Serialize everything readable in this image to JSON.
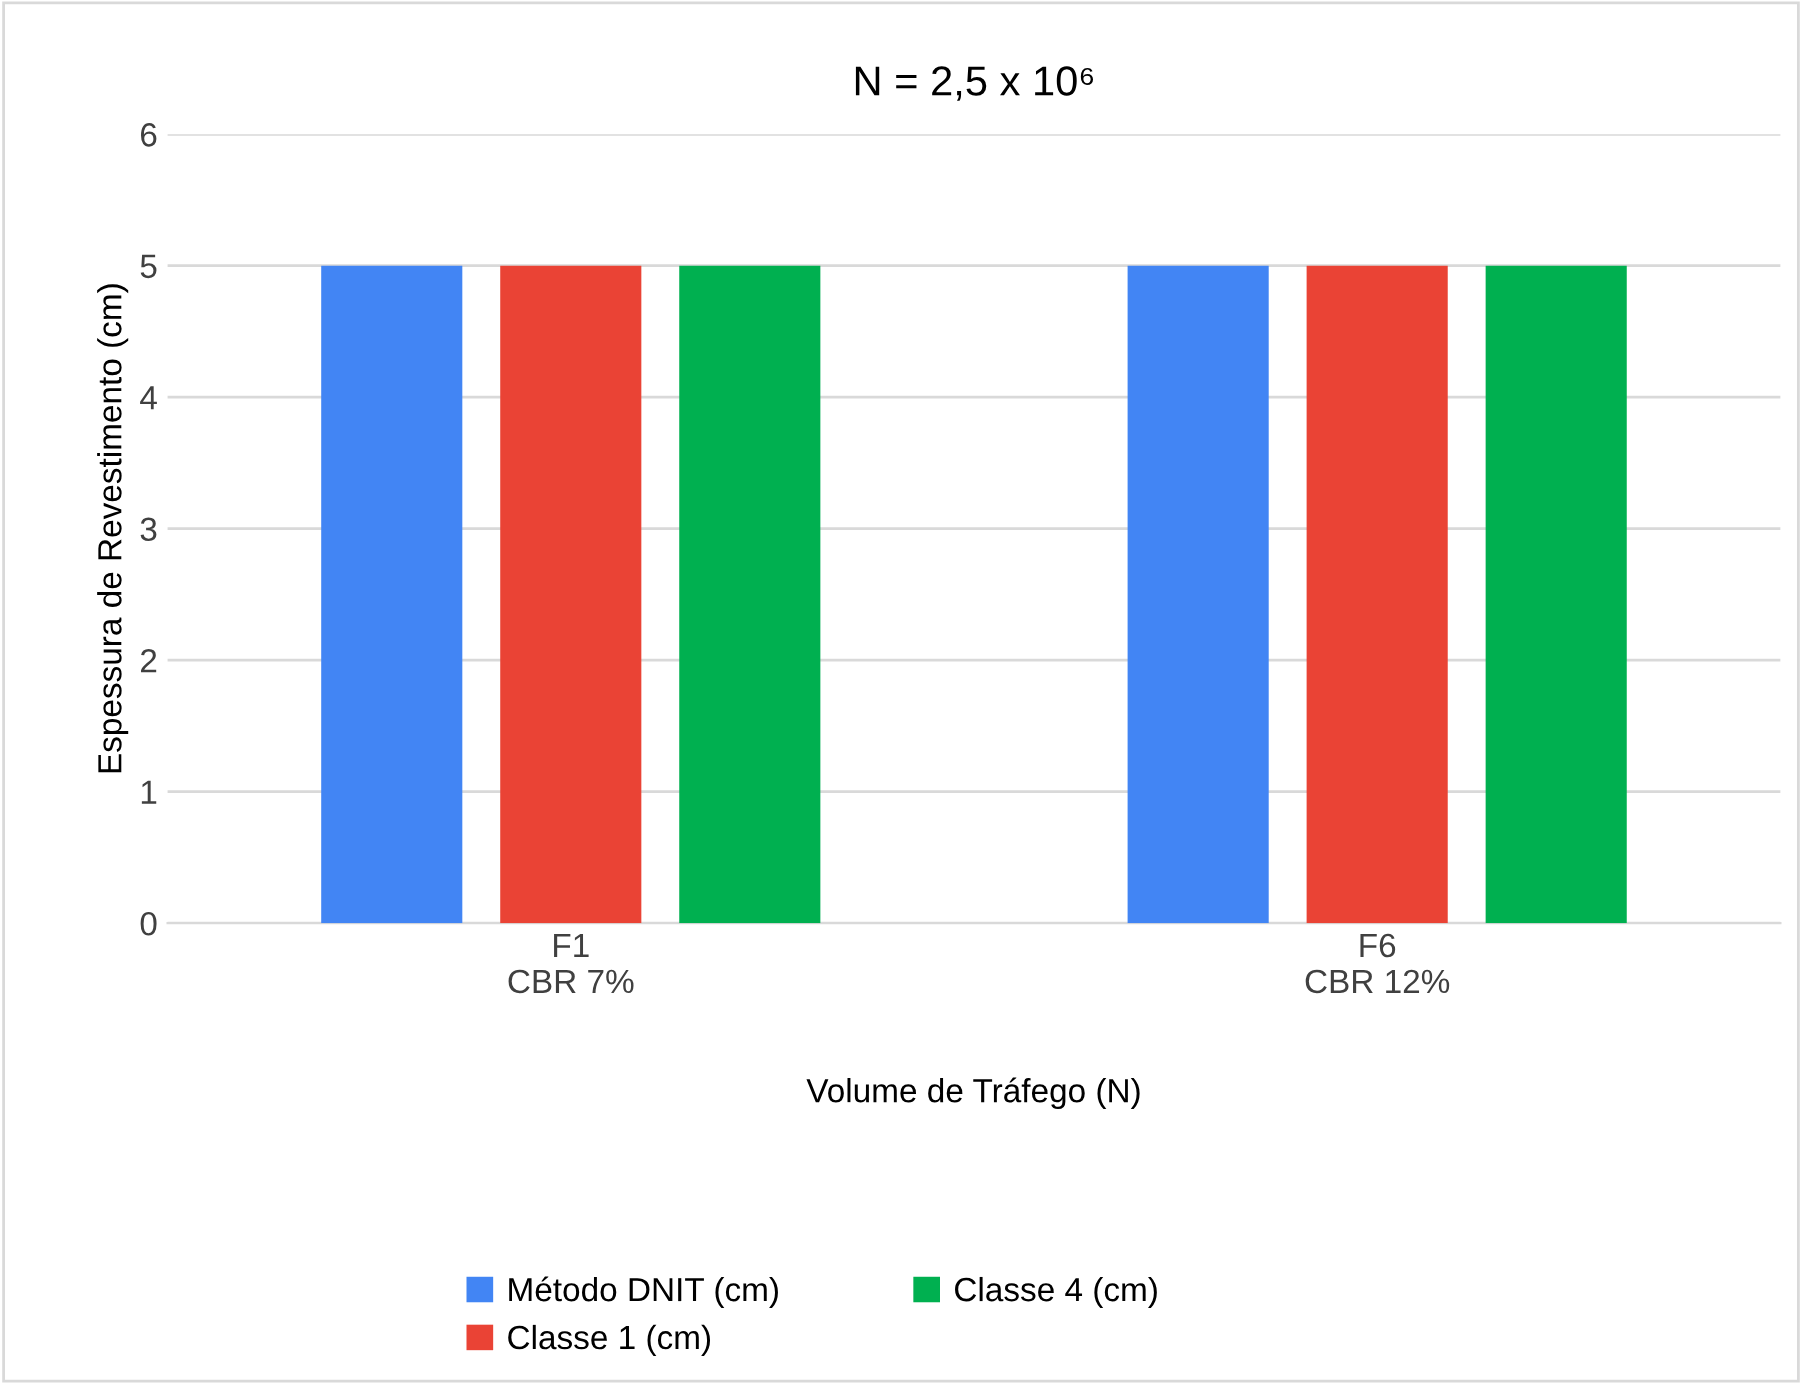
{
  "chart_data": {
    "type": "bar",
    "title": "N = 2,5 x 10⁶",
    "xlabel": "Volume de Tráfego (N)",
    "ylabel": "Espessura de Revestimento (cm)",
    "categories": [
      "F1\nCBR 7%",
      "F6\nCBR 12%"
    ],
    "series": [
      {
        "name": "Método DNIT (cm)",
        "color": "#4285f4",
        "values": [
          5,
          5
        ]
      },
      {
        "name": "Classe 1 (cm)",
        "color": "#ea4335",
        "values": [
          5,
          5
        ]
      },
      {
        "name": "Classe 4 (cm)",
        "color": "#00b050",
        "values": [
          5,
          5
        ]
      }
    ],
    "ylim": [
      0,
      6
    ],
    "yticks": [
      0,
      1,
      2,
      3,
      4,
      5,
      6
    ],
    "grid": "y",
    "legend": "bottom"
  }
}
